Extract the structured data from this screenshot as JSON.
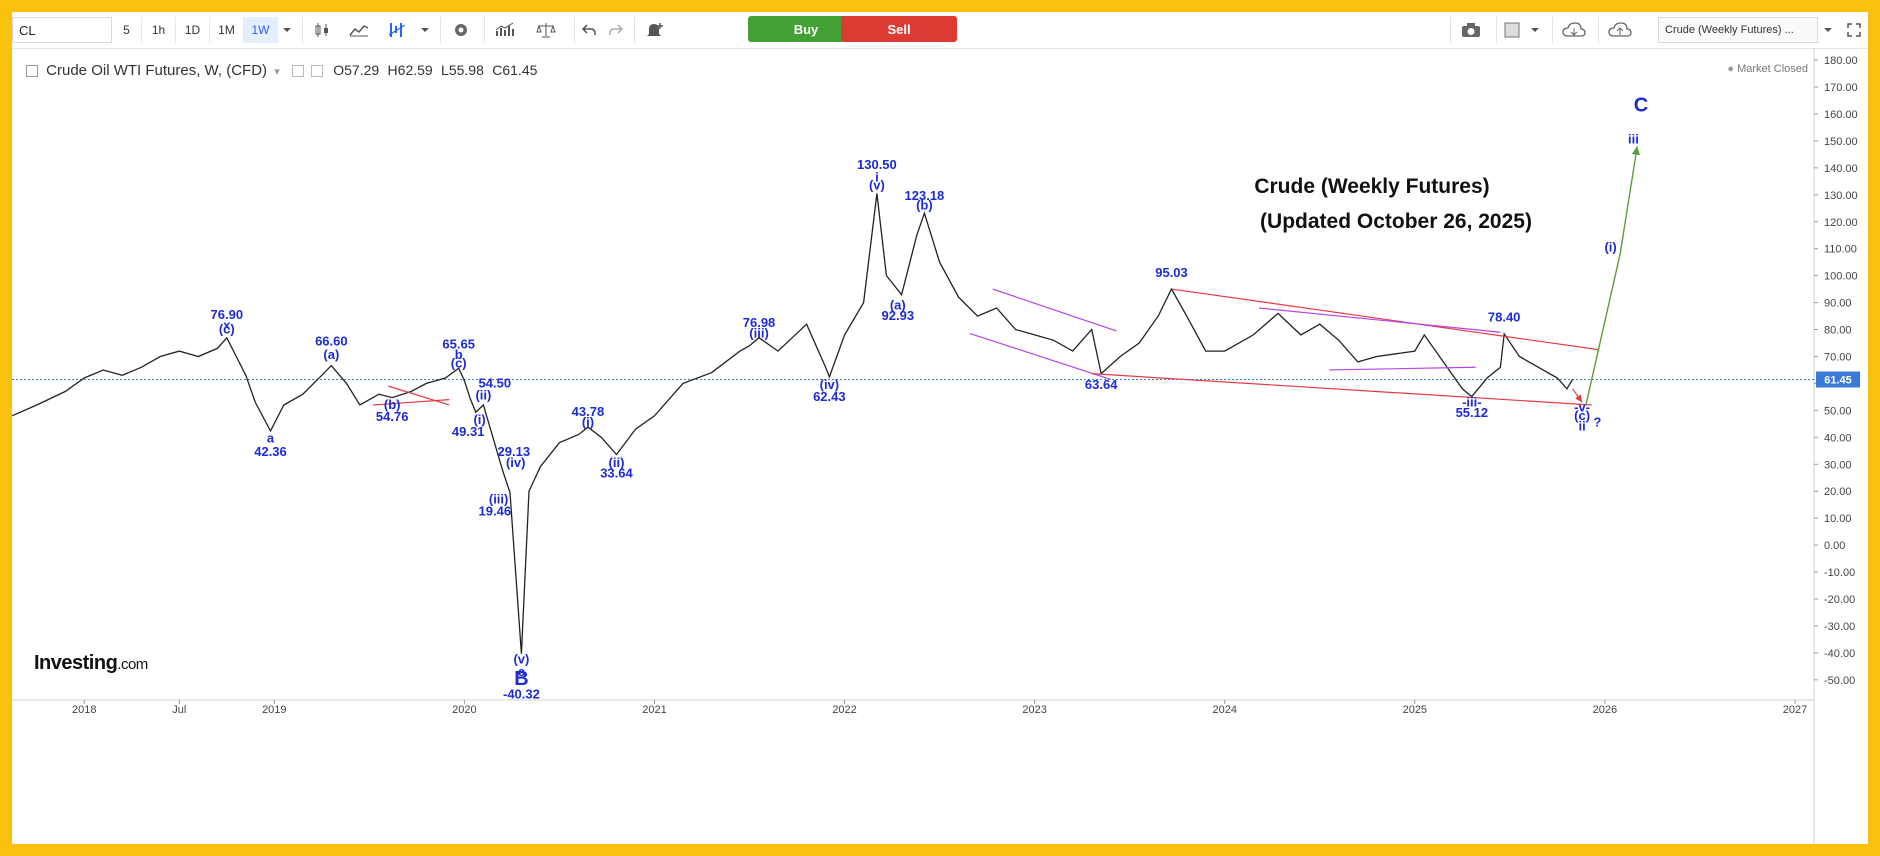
{
  "toolbar": {
    "symbol": "CL",
    "intervals": [
      "5",
      "1h",
      "1D",
      "1M",
      "1W"
    ],
    "active_interval": "1W",
    "buy_label": "Buy",
    "sell_label": "Sell",
    "buy_color": "#43a035",
    "sell_color": "#dc3b34",
    "layout_name": "Crude (Weekly Futures) ..."
  },
  "legend": {
    "instrument": "Crude Oil WTI Futures, W, (CFD)",
    "open_key": "O",
    "open": "57.29",
    "high_key": "H",
    "high": "62.59",
    "low_key": "L",
    "low": "55.98",
    "close_key": "C",
    "close": "61.45"
  },
  "status": "Market Closed",
  "logo": {
    "main": "Investing",
    "suffix": ".com"
  },
  "chart_data": {
    "type": "line",
    "title": "Crude (Weekly Futures)",
    "subtitle": "(Updated October 26, 2025)",
    "y_ticks": [
      180,
      170,
      160,
      150,
      140,
      130,
      120,
      110,
      100,
      90,
      80,
      70,
      60,
      50,
      40,
      30,
      20,
      10,
      0,
      -10,
      -20,
      -30,
      -40,
      -50
    ],
    "y_tick_labels": [
      "180.00",
      "170.00",
      "160.00",
      "150.00",
      "140.00",
      "130.00",
      "120.00",
      "110.00",
      "100.00",
      "90.00",
      "80.00",
      "70.00",
      "60.00",
      "50.00",
      "40.00",
      "30.00",
      "20.00",
      "10.00",
      "0.00",
      "-10.00",
      "-20.00",
      "-30.00",
      "-40.00",
      "-50.00"
    ],
    "ylim": [
      -56,
      183
    ],
    "x_ticks": [
      {
        "label": "2018",
        "x": 2018.0
      },
      {
        "label": "Jul",
        "x": 2018.5
      },
      {
        "label": "2019",
        "x": 2019.0
      },
      {
        "label": "2020",
        "x": 2020.0
      },
      {
        "label": "2021",
        "x": 2021.0
      },
      {
        "label": "2022",
        "x": 2022.0
      },
      {
        "label": "2023",
        "x": 2023.0
      },
      {
        "label": "2024",
        "x": 2024.0
      },
      {
        "label": "2025",
        "x": 2025.0
      },
      {
        "label": "2026",
        "x": 2026.0
      },
      {
        "label": "2027",
        "x": 2027.0
      }
    ],
    "xlim": [
      2017.62,
      2027.1
    ],
    "last_price": 61.45,
    "last_price_label": "61.45",
    "series": [
      {
        "values": [
          [
            2017.62,
            48
          ],
          [
            2017.75,
            52
          ],
          [
            2017.9,
            57
          ],
          [
            2018.0,
            62
          ],
          [
            2018.1,
            65
          ],
          [
            2018.2,
            63
          ],
          [
            2018.3,
            66
          ],
          [
            2018.4,
            70
          ],
          [
            2018.5,
            72
          ],
          [
            2018.6,
            70
          ],
          [
            2018.7,
            73
          ],
          [
            2018.75,
            76.9
          ],
          [
            2018.8,
            70
          ],
          [
            2018.85,
            63
          ],
          [
            2018.9,
            53
          ],
          [
            2018.98,
            42.36
          ],
          [
            2019.05,
            52
          ],
          [
            2019.15,
            56
          ],
          [
            2019.25,
            63
          ],
          [
            2019.3,
            66.6
          ],
          [
            2019.38,
            60
          ],
          [
            2019.45,
            52
          ],
          [
            2019.55,
            56
          ],
          [
            2019.62,
            54.76
          ],
          [
            2019.72,
            57
          ],
          [
            2019.8,
            60
          ],
          [
            2019.9,
            62
          ],
          [
            2019.97,
            65.65
          ],
          [
            2020.0,
            61
          ],
          [
            2020.03,
            54.5
          ],
          [
            2020.06,
            49.31
          ],
          [
            2020.1,
            52
          ],
          [
            2020.15,
            40
          ],
          [
            2020.2,
            28
          ],
          [
            2020.24,
            19.46
          ],
          [
            2020.3,
            -40.32
          ],
          [
            2020.34,
            20
          ],
          [
            2020.4,
            29.13
          ],
          [
            2020.5,
            38
          ],
          [
            2020.6,
            41
          ],
          [
            2020.65,
            43.78
          ],
          [
            2020.72,
            40
          ],
          [
            2020.8,
            33.64
          ],
          [
            2020.9,
            43
          ],
          [
            2021.0,
            48
          ],
          [
            2021.15,
            60
          ],
          [
            2021.3,
            64
          ],
          [
            2021.45,
            72
          ],
          [
            2021.5,
            74
          ],
          [
            2021.55,
            76.98
          ],
          [
            2021.65,
            72
          ],
          [
            2021.8,
            82
          ],
          [
            2021.9,
            66
          ],
          [
            2021.92,
            62.43
          ],
          [
            2022.0,
            78
          ],
          [
            2022.1,
            90
          ],
          [
            2022.17,
            130.5
          ],
          [
            2022.22,
            100
          ],
          [
            2022.3,
            92.93
          ],
          [
            2022.38,
            115
          ],
          [
            2022.42,
            123.18
          ],
          [
            2022.5,
            105
          ],
          [
            2022.6,
            92
          ],
          [
            2022.7,
            85
          ],
          [
            2022.8,
            88
          ],
          [
            2022.9,
            80
          ],
          [
            2023.0,
            78
          ],
          [
            2023.1,
            76
          ],
          [
            2023.2,
            72
          ],
          [
            2023.3,
            80
          ],
          [
            2023.35,
            63.64
          ],
          [
            2023.45,
            70
          ],
          [
            2023.55,
            75
          ],
          [
            2023.65,
            85
          ],
          [
            2023.72,
            95.03
          ],
          [
            2023.8,
            85
          ],
          [
            2023.9,
            72
          ],
          [
            2024.0,
            72
          ],
          [
            2024.15,
            78
          ],
          [
            2024.28,
            86
          ],
          [
            2024.4,
            78
          ],
          [
            2024.5,
            82
          ],
          [
            2024.6,
            76
          ],
          [
            2024.7,
            68
          ],
          [
            2024.8,
            70
          ],
          [
            2024.9,
            71
          ],
          [
            2025.0,
            72
          ],
          [
            2025.05,
            78
          ],
          [
            2025.15,
            68
          ],
          [
            2025.25,
            58
          ],
          [
            2025.3,
            55.12
          ],
          [
            2025.38,
            62
          ],
          [
            2025.45,
            66
          ],
          [
            2025.47,
            78.4
          ],
          [
            2025.55,
            70
          ],
          [
            2025.65,
            66
          ],
          [
            2025.75,
            62
          ],
          [
            2025.8,
            58
          ],
          [
            2025.83,
            61.45
          ]
        ]
      }
    ],
    "trendlines": [
      {
        "color": "#e63946",
        "points": [
          [
            2019.6,
            59
          ],
          [
            2019.92,
            52
          ]
        ]
      },
      {
        "color": "#e63946",
        "points": [
          [
            2019.52,
            52
          ],
          [
            2019.92,
            54
          ]
        ]
      },
      {
        "color": "#b446e8",
        "points": [
          [
            2022.78,
            95
          ],
          [
            2023.43,
            79.5
          ]
        ]
      },
      {
        "color": "#b446e8",
        "points": [
          [
            2022.66,
            78.5
          ],
          [
            2023.4,
            61.5
          ]
        ]
      },
      {
        "color": "#e63946",
        "points": [
          [
            2023.3,
            63.64
          ],
          [
            2025.93,
            52
          ]
        ]
      },
      {
        "color": "#e63946",
        "points": [
          [
            2023.72,
            95.03
          ],
          [
            2025.97,
            72.5
          ]
        ]
      },
      {
        "color": "#b446e8",
        "points": [
          [
            2024.18,
            88
          ],
          [
            2025.45,
            79
          ]
        ]
      },
      {
        "color": "#b446e8",
        "points": [
          [
            2024.55,
            65
          ],
          [
            2025.32,
            66
          ]
        ]
      }
    ],
    "projection": {
      "color": "#5a9e3a",
      "points": [
        [
          2025.9,
          52
        ],
        [
          2026.08,
          108
        ],
        [
          2026.17,
          148
        ]
      ]
    },
    "projection_small": {
      "color": "#e63946",
      "points": [
        [
          2025.83,
          58
        ],
        [
          2025.88,
          53
        ]
      ]
    },
    "wave_labels": [
      {
        "text": "76.90",
        "x": 2018.75,
        "y": 84
      },
      {
        "text": "x",
        "x": 2018.75,
        "y": 80
      },
      {
        "text": "(c)",
        "x": 2018.75,
        "y": 78.5
      },
      {
        "text": "a",
        "x": 2018.98,
        "y": 38
      },
      {
        "text": "42.36",
        "x": 2018.98,
        "y": 33
      },
      {
        "text": "66.60",
        "x": 2019.3,
        "y": 74
      },
      {
        "text": "(a)",
        "x": 2019.3,
        "y": 69
      },
      {
        "text": "(b)",
        "x": 2019.62,
        "y": 50.5
      },
      {
        "text": "54.76",
        "x": 2019.62,
        "y": 46
      },
      {
        "text": "65.65",
        "x": 2019.97,
        "y": 73
      },
      {
        "text": "b",
        "x": 2019.97,
        "y": 69
      },
      {
        "text": "(c)",
        "x": 2019.97,
        "y": 66
      },
      {
        "text": "54.50",
        "x": 2020.16,
        "y": 58.5
      },
      {
        "text": "(ii)",
        "x": 2020.1,
        "y": 54
      },
      {
        "text": "(i)",
        "x": 2020.08,
        "y": 45
      },
      {
        "text": "49.31",
        "x": 2020.02,
        "y": 40.5
      },
      {
        "text": "29.13",
        "x": 2020.26,
        "y": 33
      },
      {
        "text": "(iv)",
        "x": 2020.27,
        "y": 29
      },
      {
        "text": "(iii)",
        "x": 2020.18,
        "y": 15.5
      },
      {
        "text": "19.46",
        "x": 2020.16,
        "y": 11
      },
      {
        "text": "(v)",
        "x": 2020.3,
        "y": -44
      },
      {
        "text": "c",
        "x": 2020.3,
        "y": -48.5
      },
      {
        "text": "-40.32",
        "x": 2020.3,
        "y": -57
      },
      {
        "text": "43.78",
        "x": 2020.65,
        "y": 48
      },
      {
        "text": "(i)",
        "x": 2020.65,
        "y": 44
      },
      {
        "text": "(ii)",
        "x": 2020.8,
        "y": 29
      },
      {
        "text": "33.64",
        "x": 2020.8,
        "y": 25
      },
      {
        "text": "76.98",
        "x": 2021.55,
        "y": 81
      },
      {
        "text": "(iii)",
        "x": 2021.55,
        "y": 77
      },
      {
        "text": "(iv)",
        "x": 2021.92,
        "y": 58
      },
      {
        "text": "62.43",
        "x": 2021.92,
        "y": 53.5
      },
      {
        "text": "130.50",
        "x": 2022.17,
        "y": 139.5
      },
      {
        "text": "i",
        "x": 2022.17,
        "y": 135
      },
      {
        "text": "(v)",
        "x": 2022.17,
        "y": 132
      },
      {
        "text": "123.18",
        "x": 2022.42,
        "y": 128
      },
      {
        "text": "(b)",
        "x": 2022.42,
        "y": 124.5
      },
      {
        "text": "(a)",
        "x": 2022.28,
        "y": 87.5
      },
      {
        "text": "92.93",
        "x": 2022.28,
        "y": 83.5
      },
      {
        "text": "63.64",
        "x": 2023.35,
        "y": 58
      },
      {
        "text": "95.03",
        "x": 2023.72,
        "y": 99.5
      },
      {
        "text": "78.40",
        "x": 2025.47,
        "y": 83
      },
      {
        "text": "-iii-",
        "x": 2025.3,
        "y": 51.5
      },
      {
        "text": "55.12",
        "x": 2025.3,
        "y": 47.5
      },
      {
        "text": "-v-",
        "x": 2025.88,
        "y": 49.5
      },
      {
        "text": "(c)",
        "x": 2025.88,
        "y": 46.5
      },
      {
        "text": "ii",
        "x": 2025.88,
        "y": 42.5
      },
      {
        "text": "?",
        "x": 2025.96,
        "y": 44
      },
      {
        "text": "(i)",
        "x": 2026.03,
        "y": 109
      },
      {
        "text": "iii",
        "x": 2026.15,
        "y": 149
      }
    ],
    "big_labels": [
      {
        "text": "B",
        "x": 2020.3,
        "y": -52
      },
      {
        "text": "C",
        "x": 2026.19,
        "y": 161
      }
    ]
  }
}
